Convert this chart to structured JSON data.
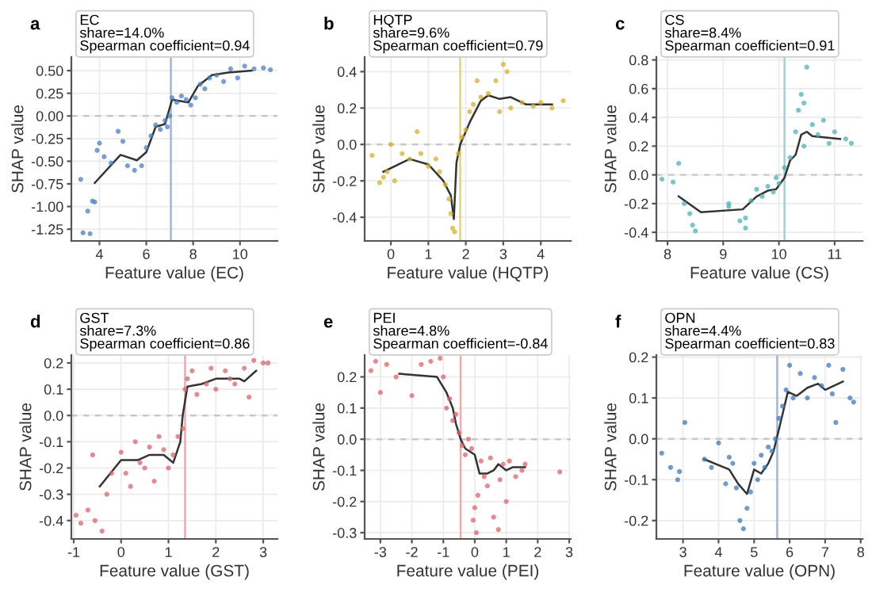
{
  "chart_data": [
    {
      "type": "scatter",
      "title": "a",
      "xlabel": "Feature value (EC)",
      "ylabel": "SHAP value",
      "annotations": [
        "EC",
        "share=14.0%",
        "Spearman coefficient=0.94"
      ],
      "xlim": [
        2.8,
        11.6
      ],
      "ylim": [
        -1.38,
        0.65
      ],
      "xticks": [
        4,
        6,
        8,
        10
      ],
      "yticks": [
        {
          "value": -1.25,
          "label": "-1.25"
        },
        {
          "value": -1.0,
          "label": "-1.00"
        },
        {
          "value": -0.75,
          "label": "-0.75"
        },
        {
          "value": -0.5,
          "label": "-0.50"
        },
        {
          "value": -0.25,
          "label": "-0.25"
        },
        {
          "value": 0.0,
          "label": "0.00"
        },
        {
          "value": 0.25,
          "label": "0.25"
        },
        {
          "value": 0.5,
          "label": "0.50"
        }
      ],
      "grid": true,
      "ref_lines": [
        {
          "axis": "x",
          "value": 7.05,
          "color": "#9cb9dd",
          "line_style": "solid"
        },
        {
          "axis": "y",
          "value": 0,
          "color": "#c8c8c8",
          "line_style": "dashed"
        }
      ],
      "series": [
        {
          "type": "scatter",
          "color": "#4a7fc0",
          "x": [
            3.2,
            3.3,
            3.5,
            3.6,
            3.7,
            3.8,
            3.9,
            4.0,
            4.2,
            4.5,
            4.8,
            5.0,
            5.2,
            5.5,
            5.8,
            6.0,
            6.2,
            6.4,
            6.6,
            6.8,
            6.9,
            7.0,
            7.1,
            7.3,
            7.5,
            7.7,
            7.9,
            8.1,
            8.3,
            8.5,
            8.7,
            9.0,
            9.3,
            9.6,
            9.9,
            10.2,
            10.6,
            11.0,
            11.3
          ],
          "values": [
            -0.7,
            -1.29,
            -1.05,
            -1.3,
            -0.94,
            -0.95,
            -0.38,
            -0.3,
            -0.45,
            -0.52,
            -0.17,
            -0.28,
            -0.55,
            -0.6,
            -0.55,
            -0.35,
            -0.22,
            -0.1,
            -0.15,
            -0.05,
            -0.12,
            0.0,
            0.2,
            0.15,
            0.22,
            0.18,
            0.12,
            0.2,
            0.35,
            0.3,
            0.42,
            0.45,
            0.38,
            0.52,
            0.42,
            0.55,
            0.52,
            0.53,
            0.51
          ]
        },
        {
          "type": "line",
          "color": "#333333",
          "x": [
            3.8,
            4.9,
            5.6,
            6.0,
            6.4,
            6.8,
            7.1,
            7.8,
            8.2,
            8.8,
            9.5,
            10.5
          ],
          "values": [
            -0.74,
            -0.43,
            -0.49,
            -0.4,
            -0.12,
            -0.09,
            0.18,
            0.15,
            0.33,
            0.45,
            0.48,
            0.5
          ]
        }
      ]
    },
    {
      "type": "scatter",
      "title": "b",
      "xlabel": "Feature value (HQTP)",
      "ylabel": "SHAP value",
      "annotations": [
        "HQTP",
        "share=9.6%",
        "Spearman coefficient=0.79"
      ],
      "xlim": [
        -0.7,
        4.8
      ],
      "ylim": [
        -0.53,
        0.48
      ],
      "xticks": [
        0,
        1,
        2,
        3,
        4
      ],
      "yticks": [
        -0.4,
        -0.2,
        {
          "value": 0.0,
          "label": "0.0"
        },
        0.2,
        0.4
      ],
      "grid": true,
      "ref_lines": [
        {
          "axis": "x",
          "value": 1.85,
          "color": "#e6d27a",
          "line_style": "solid"
        },
        {
          "axis": "y",
          "value": 0,
          "color": "#c8c8c8",
          "line_style": "dashed"
        }
      ],
      "series": [
        {
          "type": "scatter",
          "color": "#d4b02a",
          "x": [
            -0.5,
            -0.3,
            -0.2,
            -0.1,
            0.0,
            0.1,
            0.3,
            0.5,
            0.7,
            0.8,
            1.0,
            1.2,
            1.3,
            1.45,
            1.55,
            1.6,
            1.65,
            1.7,
            1.8,
            1.9,
            2.0,
            2.1,
            2.2,
            2.3,
            2.4,
            2.6,
            2.8,
            3.0,
            3.1,
            3.2,
            3.5,
            3.8,
            4.0,
            4.3,
            4.6,
            2.9
          ],
          "values": [
            -0.06,
            -0.21,
            -0.18,
            -0.15,
            0.0,
            -0.2,
            -0.05,
            -0.08,
            0.07,
            -0.05,
            -0.12,
            -0.08,
            -0.15,
            -0.22,
            -0.3,
            -0.38,
            -0.46,
            -0.48,
            -0.05,
            0.04,
            0.08,
            0.18,
            0.22,
            0.35,
            0.26,
            0.28,
            0.35,
            0.44,
            0.4,
            0.2,
            0.23,
            0.21,
            0.23,
            0.2,
            0.24,
            0.18
          ]
        },
        {
          "type": "line",
          "color": "#333333",
          "x": [
            -0.2,
            0.5,
            1.0,
            1.4,
            1.6,
            1.68,
            1.75,
            1.85,
            2.1,
            2.4,
            2.6,
            2.9,
            3.2,
            3.6,
            4.3
          ],
          "values": [
            -0.15,
            -0.08,
            -0.11,
            -0.2,
            -0.28,
            -0.41,
            -0.1,
            0.0,
            0.12,
            0.24,
            0.27,
            0.25,
            0.26,
            0.22,
            0.22
          ]
        }
      ]
    },
    {
      "type": "scatter",
      "title": "c",
      "xlabel": "Feature value (CS)",
      "ylabel": "SHAP value",
      "annotations": [
        "CS",
        "share=8.4%",
        "Spearman coefficient=0.91"
      ],
      "xlim": [
        7.8,
        11.5
      ],
      "ylim": [
        -0.46,
        0.82
      ],
      "xticks": [
        8,
        9,
        10,
        11
      ],
      "yticks": [
        -0.4,
        -0.2,
        {
          "value": 0.0,
          "label": "0.0"
        },
        0.2,
        0.4,
        0.6,
        0.8
      ],
      "grid": true,
      "ref_lines": [
        {
          "axis": "x",
          "value": 10.1,
          "color": "#9fd3d5",
          "line_style": "solid"
        },
        {
          "axis": "y",
          "value": 0,
          "color": "#c8c8c8",
          "line_style": "dashed"
        }
      ],
      "series": [
        {
          "type": "scatter",
          "color": "#4fb0b5",
          "x": [
            7.9,
            8.2,
            8.3,
            8.4,
            8.45,
            8.5,
            8.1,
            9.1,
            9.1,
            9.3,
            9.4,
            9.4,
            9.5,
            9.6,
            9.7,
            9.8,
            9.9,
            10.0,
            10.1,
            10.2,
            10.3,
            10.35,
            10.4,
            10.45,
            10.5,
            10.6,
            10.7,
            10.8,
            10.9,
            11.0,
            11.2,
            11.3,
            10.45,
            9.95
          ],
          "values": [
            -0.03,
            0.08,
            -0.2,
            -0.27,
            -0.35,
            -0.39,
            -0.05,
            -0.22,
            -0.2,
            -0.32,
            -0.3,
            -0.37,
            -0.18,
            -0.1,
            -0.15,
            -0.08,
            -0.12,
            -0.06,
            0.05,
            0.12,
            0.3,
            0.45,
            0.56,
            0.2,
            0.75,
            0.35,
            0.28,
            0.38,
            0.22,
            0.3,
            0.25,
            0.22,
            0.5,
            -0.02
          ]
        },
        {
          "type": "line",
          "color": "#333333",
          "x": [
            8.2,
            8.6,
            9.35,
            9.6,
            9.8,
            9.95,
            10.1,
            10.2,
            10.3,
            10.4,
            10.5,
            10.6,
            11.1
          ],
          "values": [
            -0.15,
            -0.26,
            -0.24,
            -0.15,
            -0.11,
            -0.1,
            -0.02,
            0.1,
            0.14,
            0.28,
            0.3,
            0.27,
            0.25
          ]
        }
      ]
    },
    {
      "type": "scatter",
      "title": "d",
      "xlabel": "Feature value (GST)",
      "ylabel": "SHAP value",
      "annotations": [
        "GST",
        "share=7.3%",
        "Spearman coefficient=0.86"
      ],
      "xlim": [
        -1.05,
        3.3
      ],
      "ylim": [
        -0.47,
        0.23
      ],
      "xticks": [
        -1,
        0,
        1,
        2,
        3
      ],
      "yticks": [
        -0.4,
        -0.3,
        -0.2,
        -0.1,
        {
          "value": 0.0,
          "label": "0.0"
        },
        0.1,
        0.2
      ],
      "grid": true,
      "ref_lines": [
        {
          "axis": "x",
          "value": 1.35,
          "color": "#eeaaac",
          "line_style": "solid"
        },
        {
          "axis": "y",
          "value": 0,
          "color": "#c8c8c8",
          "line_style": "dashed"
        }
      ],
      "series": [
        {
          "type": "scatter",
          "color": "#d9646a",
          "x": [
            -0.95,
            -0.85,
            -0.7,
            -0.55,
            -0.4,
            -0.6,
            -0.3,
            -0.2,
            0.0,
            0.1,
            0.2,
            0.3,
            0.4,
            0.5,
            0.6,
            0.7,
            0.8,
            0.9,
            1.0,
            1.1,
            1.2,
            1.3,
            1.35,
            1.4,
            1.5,
            1.6,
            1.8,
            1.9,
            2.0,
            2.2,
            2.4,
            2.6,
            2.7,
            2.8,
            3.0,
            3.1,
            2.3
          ],
          "values": [
            -0.38,
            -0.41,
            -0.36,
            -0.4,
            -0.44,
            -0.15,
            -0.3,
            -0.22,
            -0.14,
            -0.22,
            -0.27,
            -0.1,
            -0.18,
            -0.2,
            -0.12,
            -0.25,
            -0.08,
            -0.13,
            -0.2,
            -0.15,
            -0.08,
            -0.05,
            0.1,
            0.14,
            0.17,
            0.08,
            0.12,
            0.18,
            0.1,
            0.17,
            0.12,
            0.18,
            0.07,
            0.21,
            0.2,
            0.2,
            0.14
          ]
        },
        {
          "type": "line",
          "color": "#333333",
          "x": [
            -0.45,
            0.0,
            0.35,
            0.6,
            0.9,
            1.1,
            1.25,
            1.3,
            1.4,
            1.7,
            2.0,
            2.5,
            2.6,
            2.85
          ],
          "values": [
            -0.27,
            -0.17,
            -0.17,
            -0.15,
            -0.15,
            -0.18,
            -0.1,
            0.0,
            0.11,
            0.12,
            0.14,
            0.14,
            0.13,
            0.17
          ]
        }
      ]
    },
    {
      "type": "scatter",
      "title": "e",
      "xlabel": "Feature value (PEI)",
      "ylabel": "SHAP value",
      "annotations": [
        "PEI",
        "share=4.8%",
        "Spearman coefficient=-0.84"
      ],
      "xlim": [
        -3.5,
        3.05
      ],
      "ylim": [
        -0.32,
        0.27
      ],
      "xticks": [
        -3,
        -2,
        -1,
        0,
        1,
        2,
        3
      ],
      "yticks": [
        -0.3,
        -0.2,
        -0.1,
        {
          "value": 0.0,
          "label": "0.0"
        },
        0.1,
        0.2
      ],
      "grid": true,
      "ref_lines": [
        {
          "axis": "x",
          "value": -0.45,
          "color": "#eeaaac",
          "line_style": "solid"
        },
        {
          "axis": "y",
          "value": 0,
          "color": "#c8c8c8",
          "line_style": "dashed"
        }
      ],
      "series": [
        {
          "type": "scatter",
          "color": "#d9646a",
          "x": [
            -3.3,
            -3.15,
            -3.0,
            -2.8,
            -2.5,
            -2.0,
            -1.7,
            -1.4,
            -1.1,
            -1.0,
            -0.9,
            -0.8,
            -0.7,
            -0.6,
            -0.5,
            -0.4,
            -0.3,
            -0.2,
            -0.1,
            0.0,
            0.05,
            0.1,
            0.2,
            0.3,
            0.4,
            0.5,
            0.6,
            0.75,
            0.8,
            0.9,
            1.0,
            1.1,
            1.3,
            1.5,
            1.6,
            2.7,
            -0.05
          ],
          "values": [
            0.22,
            0.25,
            0.15,
            0.24,
            0.2,
            0.14,
            0.24,
            0.25,
            0.26,
            0.2,
            0.1,
            0.13,
            0.06,
            0.08,
            0.02,
            -0.02,
            -0.05,
            0.0,
            -0.03,
            -0.22,
            -0.3,
            -0.18,
            -0.07,
            -0.12,
            -0.15,
            -0.06,
            -0.25,
            -0.29,
            -0.13,
            -0.08,
            -0.2,
            -0.07,
            -0.12,
            -0.1,
            -0.08,
            -0.105,
            -0.26
          ]
        },
        {
          "type": "line",
          "color": "#333333",
          "x": [
            -2.4,
            -1.2,
            -0.9,
            -0.7,
            -0.6,
            -0.45,
            -0.3,
            0.0,
            0.15,
            0.4,
            0.6,
            0.75,
            1.0,
            1.2,
            1.6
          ],
          "values": [
            0.21,
            0.2,
            0.15,
            0.1,
            0.05,
            0.0,
            -0.03,
            -0.05,
            -0.11,
            -0.11,
            -0.1,
            -0.08,
            -0.1,
            -0.09,
            -0.09
          ]
        }
      ]
    },
    {
      "type": "scatter",
      "title": "f",
      "xlabel": "Feature value (OPN)",
      "ylabel": "SHAP value",
      "annotations": [
        "OPN",
        "share=4.4%",
        "Spearman coefficient=0.83"
      ],
      "xlim": [
        2.25,
        8.05
      ],
      "ylim": [
        -0.245,
        0.205
      ],
      "xticks": [
        3,
        4,
        5,
        6,
        7,
        8
      ],
      "yticks": [
        -0.2,
        -0.1,
        {
          "value": 0.0,
          "label": "0.0"
        },
        0.1,
        0.2
      ],
      "grid": true,
      "ref_lines": [
        {
          "axis": "x",
          "value": 5.65,
          "color": "#9cb9dd",
          "line_style": "solid"
        },
        {
          "axis": "y",
          "value": 0,
          "color": "#c8c8c8",
          "line_style": "dashed"
        }
      ],
      "series": [
        {
          "type": "scatter",
          "color": "#3e7ab9",
          "x": [
            2.4,
            2.65,
            2.85,
            2.9,
            3.05,
            3.6,
            3.8,
            4.0,
            4.2,
            4.4,
            4.5,
            4.6,
            4.7,
            4.8,
            4.9,
            5.0,
            5.1,
            5.2,
            5.3,
            5.4,
            5.5,
            5.6,
            5.7,
            5.8,
            5.9,
            6.0,
            6.1,
            6.3,
            6.5,
            6.7,
            6.9,
            7.1,
            7.2,
            7.3,
            7.5,
            7.7,
            7.8,
            4.3
          ],
          "values": [
            -0.035,
            -0.07,
            -0.1,
            -0.08,
            0.04,
            -0.05,
            -0.07,
            -0.01,
            -0.11,
            -0.06,
            -0.12,
            -0.2,
            -0.22,
            -0.17,
            -0.13,
            -0.06,
            -0.1,
            -0.04,
            -0.07,
            -0.02,
            -0.03,
            0.0,
            0.05,
            0.08,
            0.12,
            0.18,
            0.1,
            0.16,
            0.1,
            0.15,
            0.13,
            0.18,
            0.11,
            0.04,
            0.17,
            0.1,
            0.09,
            -0.045
          ]
        },
        {
          "type": "line",
          "color": "#333333",
          "x": [
            3.6,
            4.3,
            4.55,
            4.8,
            5.0,
            5.2,
            5.4,
            5.55,
            5.8,
            5.95,
            6.2,
            6.5,
            6.8,
            7.0,
            7.5
          ],
          "values": [
            -0.05,
            -0.075,
            -0.11,
            -0.135,
            -0.075,
            -0.085,
            -0.06,
            -0.03,
            0.06,
            0.115,
            0.105,
            0.125,
            0.135,
            0.12,
            0.14
          ]
        }
      ]
    }
  ]
}
